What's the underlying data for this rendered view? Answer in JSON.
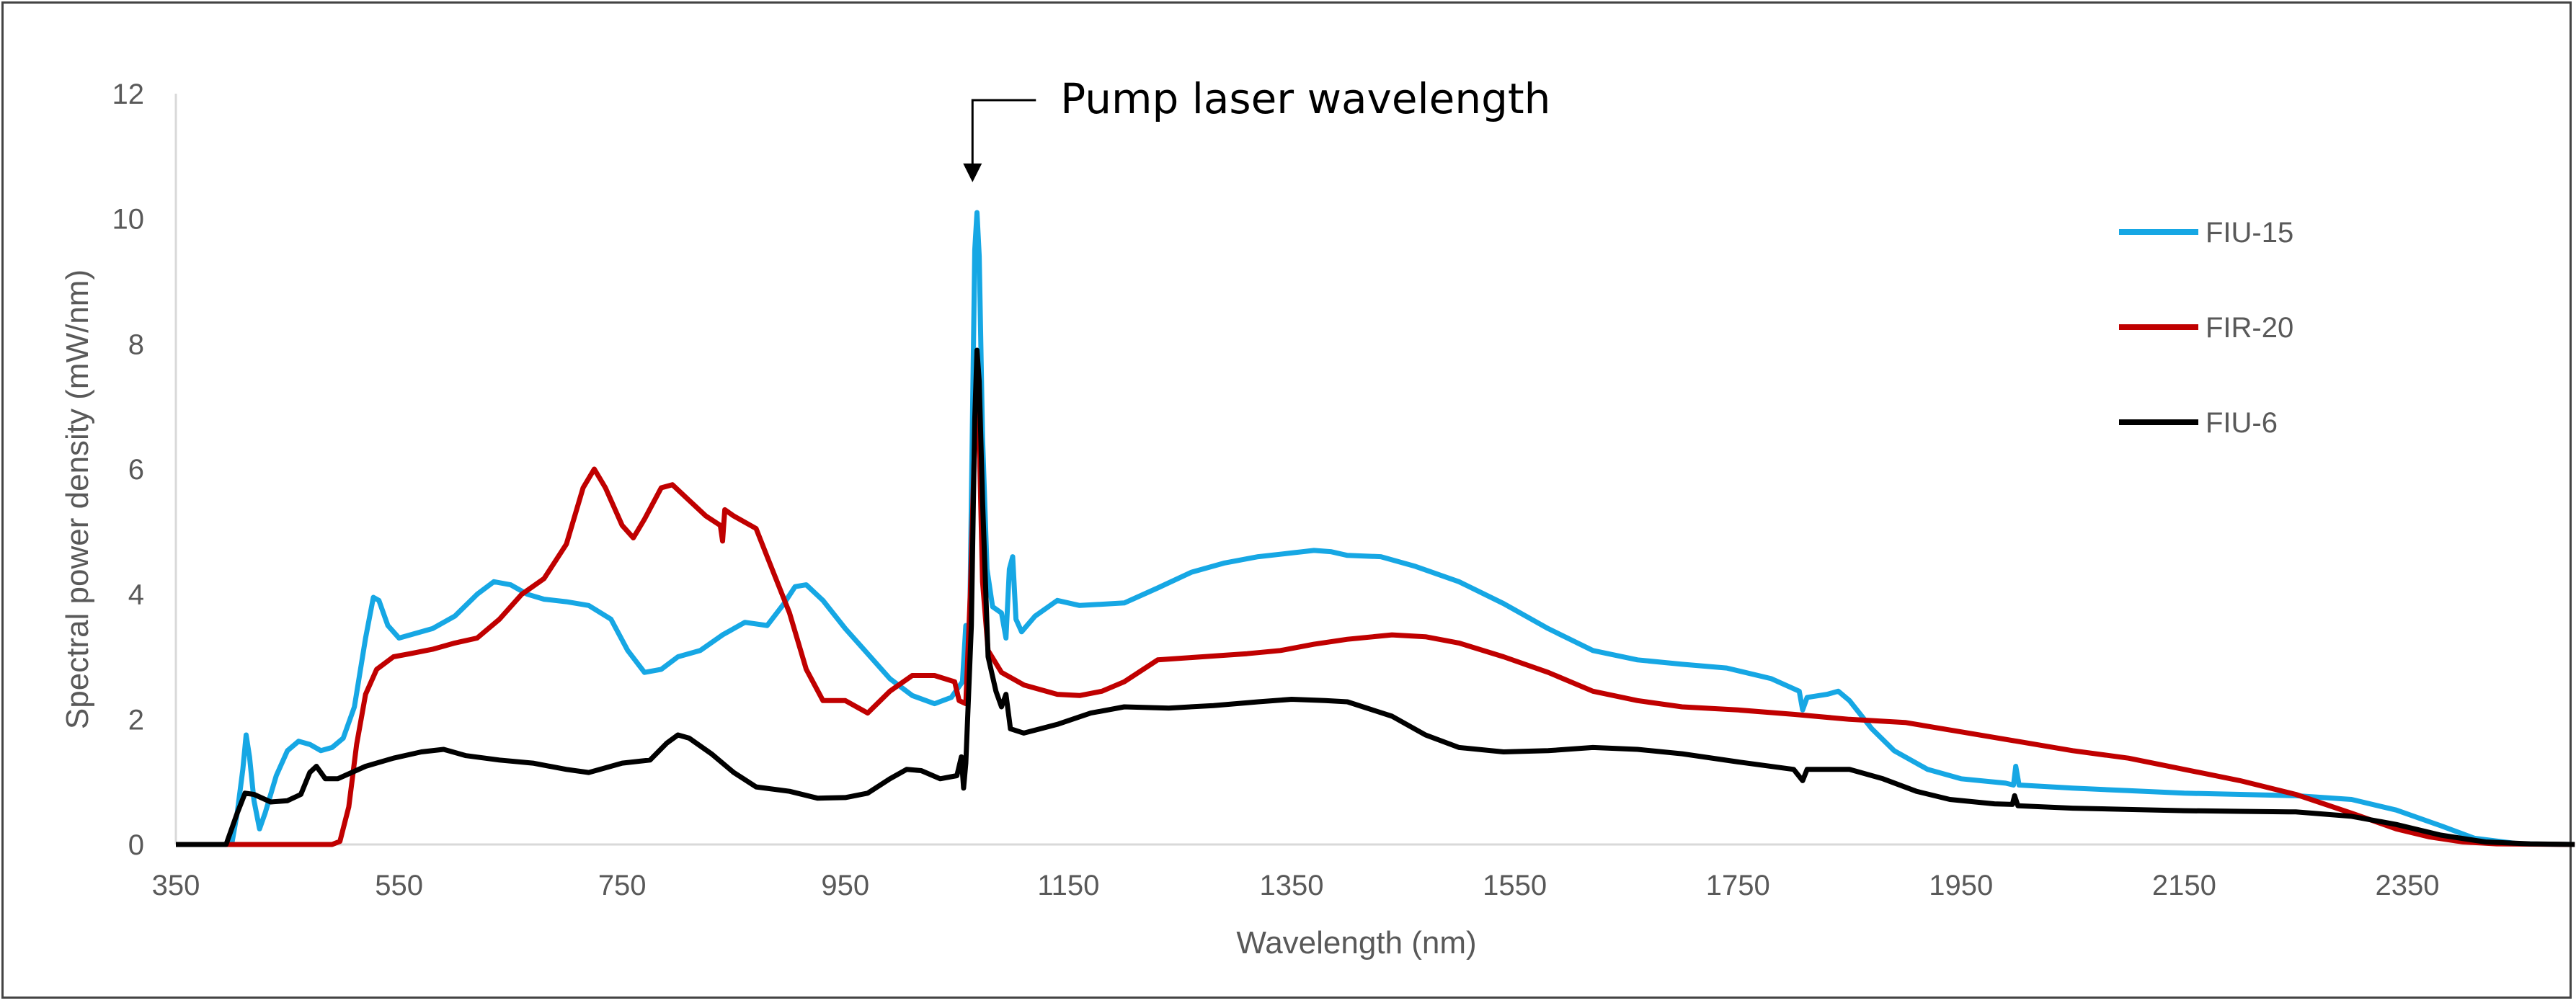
{
  "chart_data": {
    "type": "line",
    "title": "",
    "xlabel": "Wavelength (nm)",
    "ylabel": "Spectral power density (mW/nm)",
    "xlim": [
      350,
      2500
    ],
    "ylim": [
      0,
      12
    ],
    "x_ticks": [
      "350",
      "550",
      "750",
      "950",
      "1150",
      "1350",
      "1550",
      "1750",
      "1950",
      "2150",
      "2350"
    ],
    "y_ticks": [
      "0",
      "2",
      "4",
      "6",
      "8",
      "10",
      "12"
    ],
    "grid": false,
    "legend_position": "right",
    "annotation": {
      "text": "Pump laser wavelength",
      "x": 1064,
      "y": 10.7
    },
    "series": [
      {
        "name": "FIU-15",
        "color": "#16a7e4",
        "points": [
          [
            400,
            0
          ],
          [
            405,
            0.5
          ],
          [
            410,
            1.2
          ],
          [
            413,
            1.75
          ],
          [
            416,
            1.4
          ],
          [
            420,
            0.7
          ],
          [
            425,
            0.25
          ],
          [
            430,
            0.5
          ],
          [
            440,
            1.1
          ],
          [
            450,
            1.5
          ],
          [
            460,
            1.65
          ],
          [
            470,
            1.6
          ],
          [
            480,
            1.5
          ],
          [
            490,
            1.55
          ],
          [
            500,
            1.7
          ],
          [
            510,
            2.2
          ],
          [
            520,
            3.3
          ],
          [
            527,
            3.95
          ],
          [
            532,
            3.9
          ],
          [
            540,
            3.5
          ],
          [
            550,
            3.3
          ],
          [
            560,
            3.35
          ],
          [
            580,
            3.45
          ],
          [
            600,
            3.65
          ],
          [
            620,
            4.0
          ],
          [
            635,
            4.2
          ],
          [
            650,
            4.15
          ],
          [
            665,
            4.0
          ],
          [
            680,
            3.92
          ],
          [
            700,
            3.88
          ],
          [
            720,
            3.82
          ],
          [
            740,
            3.6
          ],
          [
            755,
            3.1
          ],
          [
            770,
            2.75
          ],
          [
            785,
            2.8
          ],
          [
            800,
            3.0
          ],
          [
            820,
            3.1
          ],
          [
            840,
            3.35
          ],
          [
            860,
            3.55
          ],
          [
            880,
            3.5
          ],
          [
            895,
            3.85
          ],
          [
            905,
            4.12
          ],
          [
            915,
            4.15
          ],
          [
            930,
            3.9
          ],
          [
            950,
            3.45
          ],
          [
            970,
            3.05
          ],
          [
            990,
            2.65
          ],
          [
            1010,
            2.38
          ],
          [
            1030,
            2.25
          ],
          [
            1045,
            2.35
          ],
          [
            1055,
            2.6
          ],
          [
            1058,
            3.5
          ],
          [
            1061,
            2.8
          ],
          [
            1063,
            5.5
          ],
          [
            1066,
            9.5
          ],
          [
            1068,
            10.1
          ],
          [
            1070,
            9.4
          ],
          [
            1073,
            6.5
          ],
          [
            1077,
            4.4
          ],
          [
            1082,
            3.8
          ],
          [
            1090,
            3.7
          ],
          [
            1094,
            3.3
          ],
          [
            1097,
            4.4
          ],
          [
            1100,
            4.6
          ],
          [
            1103,
            3.6
          ],
          [
            1108,
            3.4
          ],
          [
            1120,
            3.65
          ],
          [
            1140,
            3.9
          ],
          [
            1160,
            3.82
          ],
          [
            1200,
            3.86
          ],
          [
            1230,
            4.1
          ],
          [
            1260,
            4.35
          ],
          [
            1290,
            4.5
          ],
          [
            1320,
            4.6
          ],
          [
            1350,
            4.66
          ],
          [
            1370,
            4.7
          ],
          [
            1385,
            4.68
          ],
          [
            1400,
            4.62
          ],
          [
            1430,
            4.6
          ],
          [
            1460,
            4.45
          ],
          [
            1500,
            4.2
          ],
          [
            1540,
            3.85
          ],
          [
            1580,
            3.45
          ],
          [
            1620,
            3.1
          ],
          [
            1660,
            2.95
          ],
          [
            1700,
            2.88
          ],
          [
            1740,
            2.82
          ],
          [
            1780,
            2.65
          ],
          [
            1805,
            2.45
          ],
          [
            1808,
            2.15
          ],
          [
            1812,
            2.35
          ],
          [
            1830,
            2.4
          ],
          [
            1840,
            2.45
          ],
          [
            1850,
            2.3
          ],
          [
            1870,
            1.85
          ],
          [
            1890,
            1.5
          ],
          [
            1920,
            1.2
          ],
          [
            1950,
            1.05
          ],
          [
            1990,
            0.98
          ],
          [
            1997,
            0.95
          ],
          [
            1999,
            1.25
          ],
          [
            2002,
            0.95
          ],
          [
            2050,
            0.9
          ],
          [
            2100,
            0.86
          ],
          [
            2150,
            0.82
          ],
          [
            2200,
            0.8
          ],
          [
            2250,
            0.78
          ],
          [
            2300,
            0.72
          ],
          [
            2340,
            0.55
          ],
          [
            2380,
            0.3
          ],
          [
            2410,
            0.1
          ],
          [
            2450,
            0.01
          ],
          [
            2500,
            0
          ]
        ]
      },
      {
        "name": "FIR-20",
        "color": "#c00000",
        "points": [
          [
            350,
            0
          ],
          [
            490,
            0
          ],
          [
            497,
            0.05
          ],
          [
            505,
            0.6
          ],
          [
            512,
            1.6
          ],
          [
            520,
            2.4
          ],
          [
            530,
            2.8
          ],
          [
            545,
            3.0
          ],
          [
            560,
            3.05
          ],
          [
            580,
            3.12
          ],
          [
            600,
            3.22
          ],
          [
            620,
            3.3
          ],
          [
            640,
            3.6
          ],
          [
            660,
            4.0
          ],
          [
            680,
            4.25
          ],
          [
            700,
            4.8
          ],
          [
            715,
            5.7
          ],
          [
            725,
            6.0
          ],
          [
            735,
            5.7
          ],
          [
            750,
            5.1
          ],
          [
            760,
            4.9
          ],
          [
            770,
            5.2
          ],
          [
            785,
            5.7
          ],
          [
            795,
            5.75
          ],
          [
            810,
            5.5
          ],
          [
            825,
            5.25
          ],
          [
            838,
            5.1
          ],
          [
            840,
            4.85
          ],
          [
            842,
            5.35
          ],
          [
            850,
            5.25
          ],
          [
            870,
            5.05
          ],
          [
            880,
            4.6
          ],
          [
            900,
            3.7
          ],
          [
            915,
            2.8
          ],
          [
            930,
            2.3
          ],
          [
            950,
            2.3
          ],
          [
            970,
            2.1
          ],
          [
            990,
            2.45
          ],
          [
            1010,
            2.7
          ],
          [
            1030,
            2.7
          ],
          [
            1048,
            2.6
          ],
          [
            1052,
            2.3
          ],
          [
            1058,
            2.25
          ],
          [
            1062,
            4.0
          ],
          [
            1066,
            6.5
          ],
          [
            1068,
            7.0
          ],
          [
            1070,
            6.5
          ],
          [
            1073,
            4.2
          ],
          [
            1078,
            3.1
          ],
          [
            1090,
            2.75
          ],
          [
            1110,
            2.55
          ],
          [
            1140,
            2.4
          ],
          [
            1160,
            2.38
          ],
          [
            1180,
            2.45
          ],
          [
            1200,
            2.6
          ],
          [
            1230,
            2.95
          ],
          [
            1270,
            3.0
          ],
          [
            1310,
            3.05
          ],
          [
            1340,
            3.1
          ],
          [
            1370,
            3.2
          ],
          [
            1400,
            3.28
          ],
          [
            1440,
            3.35
          ],
          [
            1470,
            3.32
          ],
          [
            1500,
            3.22
          ],
          [
            1540,
            3.0
          ],
          [
            1580,
            2.75
          ],
          [
            1620,
            2.45
          ],
          [
            1660,
            2.3
          ],
          [
            1700,
            2.2
          ],
          [
            1750,
            2.15
          ],
          [
            1800,
            2.08
          ],
          [
            1850,
            2.0
          ],
          [
            1900,
            1.95
          ],
          [
            1950,
            1.8
          ],
          [
            2000,
            1.65
          ],
          [
            2050,
            1.5
          ],
          [
            2100,
            1.38
          ],
          [
            2150,
            1.2
          ],
          [
            2200,
            1.02
          ],
          [
            2250,
            0.8
          ],
          [
            2300,
            0.5
          ],
          [
            2340,
            0.25
          ],
          [
            2370,
            0.12
          ],
          [
            2400,
            0.04
          ],
          [
            2430,
            0.01
          ],
          [
            2500,
            0
          ]
        ]
      },
      {
        "name": "FIU-6",
        "color": "#000000",
        "points": [
          [
            350,
            0
          ],
          [
            395,
            0
          ],
          [
            405,
            0.5
          ],
          [
            412,
            0.82
          ],
          [
            420,
            0.8
          ],
          [
            435,
            0.68
          ],
          [
            450,
            0.7
          ],
          [
            462,
            0.8
          ],
          [
            470,
            1.15
          ],
          [
            476,
            1.25
          ],
          [
            484,
            1.05
          ],
          [
            495,
            1.05
          ],
          [
            520,
            1.25
          ],
          [
            545,
            1.38
          ],
          [
            570,
            1.48
          ],
          [
            590,
            1.52
          ],
          [
            610,
            1.42
          ],
          [
            640,
            1.35
          ],
          [
            670,
            1.3
          ],
          [
            700,
            1.2
          ],
          [
            720,
            1.15
          ],
          [
            750,
            1.3
          ],
          [
            775,
            1.35
          ],
          [
            790,
            1.62
          ],
          [
            800,
            1.75
          ],
          [
            810,
            1.7
          ],
          [
            830,
            1.45
          ],
          [
            850,
            1.15
          ],
          [
            870,
            0.92
          ],
          [
            900,
            0.85
          ],
          [
            925,
            0.74
          ],
          [
            950,
            0.75
          ],
          [
            970,
            0.82
          ],
          [
            990,
            1.05
          ],
          [
            1005,
            1.2
          ],
          [
            1018,
            1.18
          ],
          [
            1035,
            1.05
          ],
          [
            1050,
            1.1
          ],
          [
            1054,
            1.4
          ],
          [
            1056,
            0.9
          ],
          [
            1058,
            1.3
          ],
          [
            1063,
            3.5
          ],
          [
            1066,
            6.8
          ],
          [
            1068,
            7.9
          ],
          [
            1070,
            7.4
          ],
          [
            1073,
            5.5
          ],
          [
            1078,
            3.0
          ],
          [
            1085,
            2.45
          ],
          [
            1090,
            2.2
          ],
          [
            1094,
            2.4
          ],
          [
            1098,
            1.85
          ],
          [
            1110,
            1.78
          ],
          [
            1140,
            1.92
          ],
          [
            1170,
            2.1
          ],
          [
            1200,
            2.2
          ],
          [
            1240,
            2.18
          ],
          [
            1280,
            2.22
          ],
          [
            1320,
            2.28
          ],
          [
            1350,
            2.32
          ],
          [
            1380,
            2.3
          ],
          [
            1400,
            2.28
          ],
          [
            1440,
            2.05
          ],
          [
            1470,
            1.75
          ],
          [
            1500,
            1.55
          ],
          [
            1540,
            1.48
          ],
          [
            1580,
            1.5
          ],
          [
            1620,
            1.55
          ],
          [
            1660,
            1.52
          ],
          [
            1700,
            1.45
          ],
          [
            1750,
            1.32
          ],
          [
            1800,
            1.2
          ],
          [
            1808,
            1.02
          ],
          [
            1812,
            1.2
          ],
          [
            1850,
            1.2
          ],
          [
            1880,
            1.05
          ],
          [
            1910,
            0.85
          ],
          [
            1940,
            0.72
          ],
          [
            1980,
            0.65
          ],
          [
            1996,
            0.64
          ],
          [
            1998,
            0.78
          ],
          [
            2001,
            0.62
          ],
          [
            2050,
            0.58
          ],
          [
            2100,
            0.56
          ],
          [
            2150,
            0.54
          ],
          [
            2200,
            0.53
          ],
          [
            2250,
            0.52
          ],
          [
            2300,
            0.45
          ],
          [
            2340,
            0.32
          ],
          [
            2380,
            0.15
          ],
          [
            2420,
            0.04
          ],
          [
            2460,
            0.01
          ],
          [
            2500,
            0
          ]
        ]
      }
    ]
  }
}
